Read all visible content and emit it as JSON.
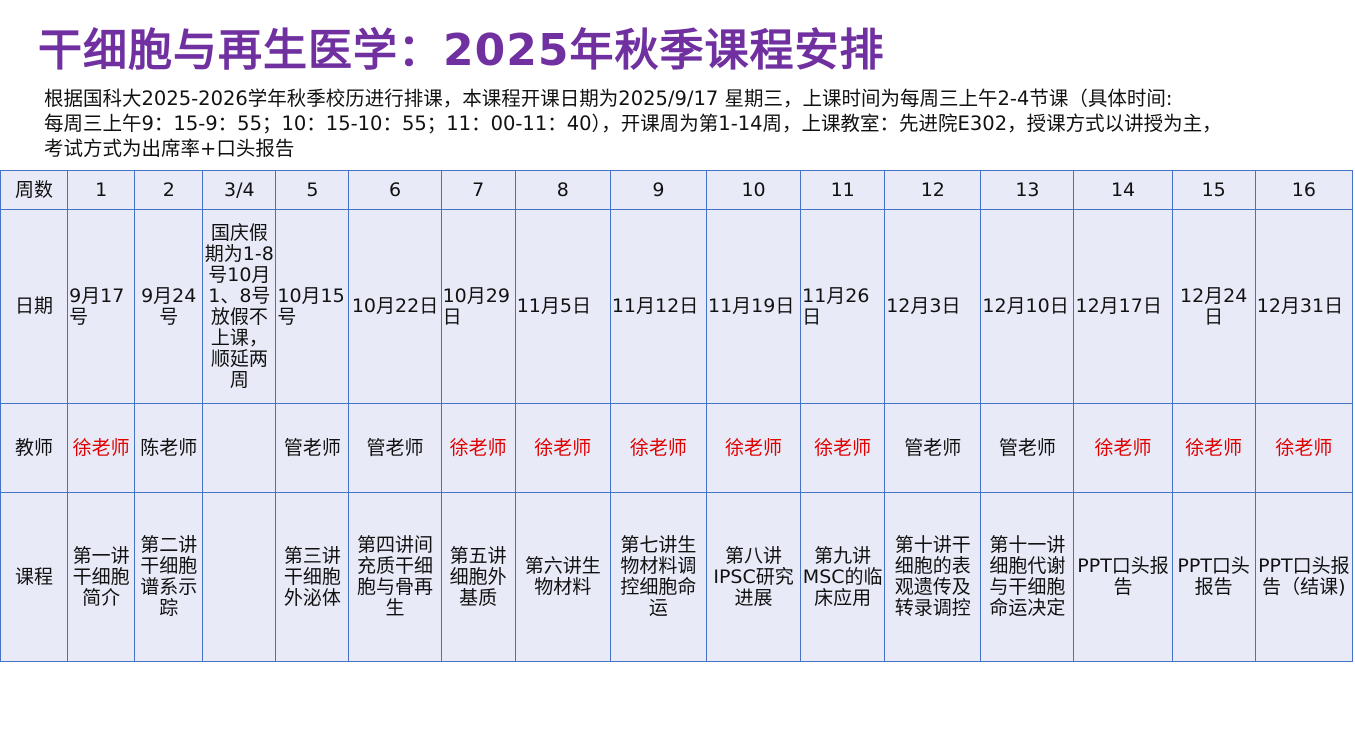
{
  "title": "干细胞与再生医学：2025年秋季课程安排",
  "intro_lines": [
    "根据国科大2025-2026学年秋季校历进行排课，本课程开课日期为2025/9/17 星期三，上课时间为每周三上午2-4节课（具体时间:",
    "每周三上午9：15-9：55；10：15-10：55；11：00-11：40），开课周为第1-14周，上课教室：先进院E302，授课方式以讲授为主，",
    "考试方式为出席率+口头报告"
  ],
  "table": {
    "row_headers": {
      "week": "周数",
      "date": "日期",
      "teacher": "教师",
      "course": "课程"
    },
    "columns": [
      {
        "week": "1",
        "date": "9月17号",
        "teacher": "徐老师",
        "teacher_red": true,
        "course": "第一讲干细胞简介"
      },
      {
        "week": "2",
        "date": "9月24号",
        "teacher": "陈老师",
        "teacher_red": false,
        "course": "第二讲干细胞谱系示踪"
      },
      {
        "week": "3/4",
        "date": "国庆假期为1-8号10月1、8号放假不上课，顺延两周",
        "teacher": "",
        "teacher_red": false,
        "course": ""
      },
      {
        "week": "5",
        "date": "10月15号",
        "teacher": "管老师",
        "teacher_red": false,
        "course": "第三讲干细胞外泌体"
      },
      {
        "week": "6",
        "date": "10月22日",
        "teacher": "管老师",
        "teacher_red": false,
        "course": "第四讲间充质干细胞与骨再生"
      },
      {
        "week": "7",
        "date": "10月29日",
        "teacher": "徐老师",
        "teacher_red": true,
        "course": "第五讲细胞外基质"
      },
      {
        "week": "8",
        "date": "11月5日",
        "teacher": "徐老师",
        "teacher_red": true,
        "course": "第六讲生物材料"
      },
      {
        "week": "9",
        "date": "11月12日",
        "teacher": "徐老师",
        "teacher_red": true,
        "course": "第七讲生物材料调控细胞命运"
      },
      {
        "week": "10",
        "date": "11月19日",
        "teacher": "徐老师",
        "teacher_red": true,
        "course": "第八讲IPSC研究进展"
      },
      {
        "week": "11",
        "date": "11月26日",
        "teacher": "徐老师",
        "teacher_red": true,
        "course": "第九讲MSC的临床应用"
      },
      {
        "week": "12",
        "date": "12月3日",
        "teacher": "管老师",
        "teacher_red": false,
        "course": "第十讲干细胞的表观遗传及转录调控"
      },
      {
        "week": "13",
        "date": "12月10日",
        "teacher": "管老师",
        "teacher_red": false,
        "course": "第十一讲细胞代谢与干细胞命运决定"
      },
      {
        "week": "14",
        "date": "12月17日",
        "teacher": "徐老师",
        "teacher_red": true,
        "course": "PPT口头报告"
      },
      {
        "week": "15",
        "date": "12月24日",
        "teacher": "徐老师",
        "teacher_red": true,
        "course": "PPT口头报告"
      },
      {
        "week": "16",
        "date": "12月31日",
        "teacher": "徐老师",
        "teacher_red": true,
        "course": "PPT口头报告（结课)"
      }
    ]
  },
  "colors": {
    "title": "#7030a0",
    "teacher_highlight": "#e00000",
    "table_bg": "#e8ebf7",
    "border": "#4472c4"
  }
}
